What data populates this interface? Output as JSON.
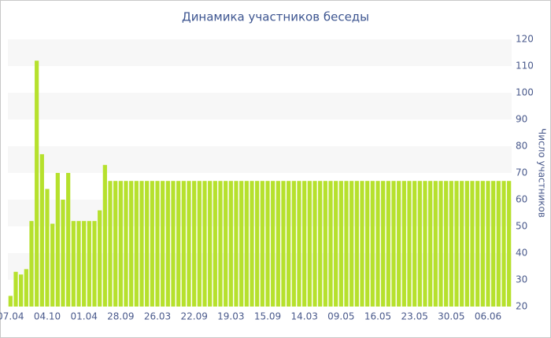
{
  "chart_data": {
    "type": "bar",
    "title": "Динамика участников беседы",
    "y_label": "Число участников",
    "categories": [
      "07.04",
      null,
      null,
      null,
      null,
      null,
      null,
      "04.10",
      null,
      null,
      null,
      null,
      null,
      null,
      "01.04",
      null,
      null,
      null,
      null,
      null,
      null,
      "28.09",
      null,
      null,
      null,
      null,
      null,
      null,
      "26.03",
      null,
      null,
      null,
      null,
      null,
      null,
      "22.09",
      null,
      null,
      null,
      null,
      null,
      null,
      "19.03",
      null,
      null,
      null,
      null,
      null,
      null,
      "15.09",
      null,
      null,
      null,
      null,
      null,
      null,
      "14.03",
      null,
      null,
      null,
      null,
      null,
      null,
      "09.05",
      null,
      null,
      null,
      null,
      null,
      null,
      "16.05",
      null,
      null,
      null,
      null,
      null,
      null,
      "23.05",
      null,
      null,
      null,
      null,
      null,
      null,
      "30.05",
      null,
      null,
      null,
      null,
      null,
      null,
      "06.06",
      null,
      null,
      null,
      null
    ],
    "values": [
      24,
      33,
      32,
      34,
      52,
      112,
      77,
      64,
      51,
      70,
      60,
      70,
      52,
      52,
      52,
      52,
      52,
      56,
      73,
      67,
      67,
      67,
      67,
      67,
      67,
      67,
      67,
      67,
      67,
      67,
      67,
      67,
      67,
      67,
      67,
      67,
      67,
      67,
      67,
      67,
      67,
      67,
      67,
      67,
      67,
      67,
      67,
      67,
      67,
      67,
      67,
      67,
      67,
      67,
      67,
      67,
      67,
      67,
      67,
      67,
      67,
      67,
      67,
      67,
      67,
      67,
      67,
      67,
      67,
      67,
      67,
      67,
      67,
      67,
      67,
      67,
      67,
      67,
      67,
      67,
      67,
      67,
      67,
      67,
      67,
      67,
      67,
      67,
      67,
      67,
      67,
      67,
      67,
      67,
      67,
      67
    ],
    "color": "#b6e12d",
    "ylim": [
      20,
      120
    ],
    "yticks": [
      20,
      30,
      40,
      50,
      60,
      70,
      80,
      90,
      100,
      110,
      120
    ],
    "grid": true,
    "y_axis_side": "right"
  }
}
